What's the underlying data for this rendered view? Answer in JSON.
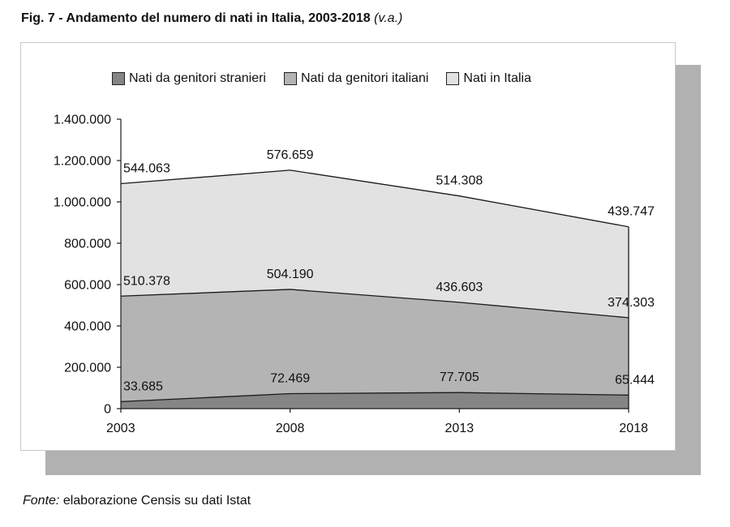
{
  "title": {
    "main": "Fig. 7 - Andamento del numero di nati in Italia, 2003-2018",
    "unit": "(v.a.)"
  },
  "source": {
    "label": "Fonte:",
    "text": "elaborazione Censis su dati Istat"
  },
  "chart_data": {
    "type": "area",
    "stacked": true,
    "title": "Fig. 7 - Andamento del numero di nati in Italia, 2003-2018 (v.a.)",
    "xlabel": "",
    "ylabel": "",
    "x": [
      "2003",
      "2008",
      "2013",
      "2018"
    ],
    "ylim": [
      0,
      1400000
    ],
    "yticks": [
      "0",
      "200.000",
      "400.000",
      "600.000",
      "800.000",
      "1.000.000",
      "1.200.000",
      "1.400.000"
    ],
    "grid": false,
    "legend_position": "top",
    "series": [
      {
        "name": "Nati da genitori stranieri",
        "values": [
          33685,
          72469,
          77705,
          65444
        ],
        "labels": [
          "33.685",
          "72.469",
          "77.705",
          "65.444"
        ],
        "color": "#858585"
      },
      {
        "name": "Nati da genitori italiani",
        "values": [
          510378,
          504190,
          436603,
          374303
        ],
        "labels": [
          "510.378",
          "504.190",
          "436.603",
          "374.303"
        ],
        "color": "#b4b4b4"
      },
      {
        "name": "Nati in Italia",
        "values": [
          544063,
          576659,
          514308,
          439747
        ],
        "labels": [
          "544.063",
          "576.659",
          "514.308",
          "439.747"
        ],
        "color": "#e2e2e2"
      }
    ]
  }
}
